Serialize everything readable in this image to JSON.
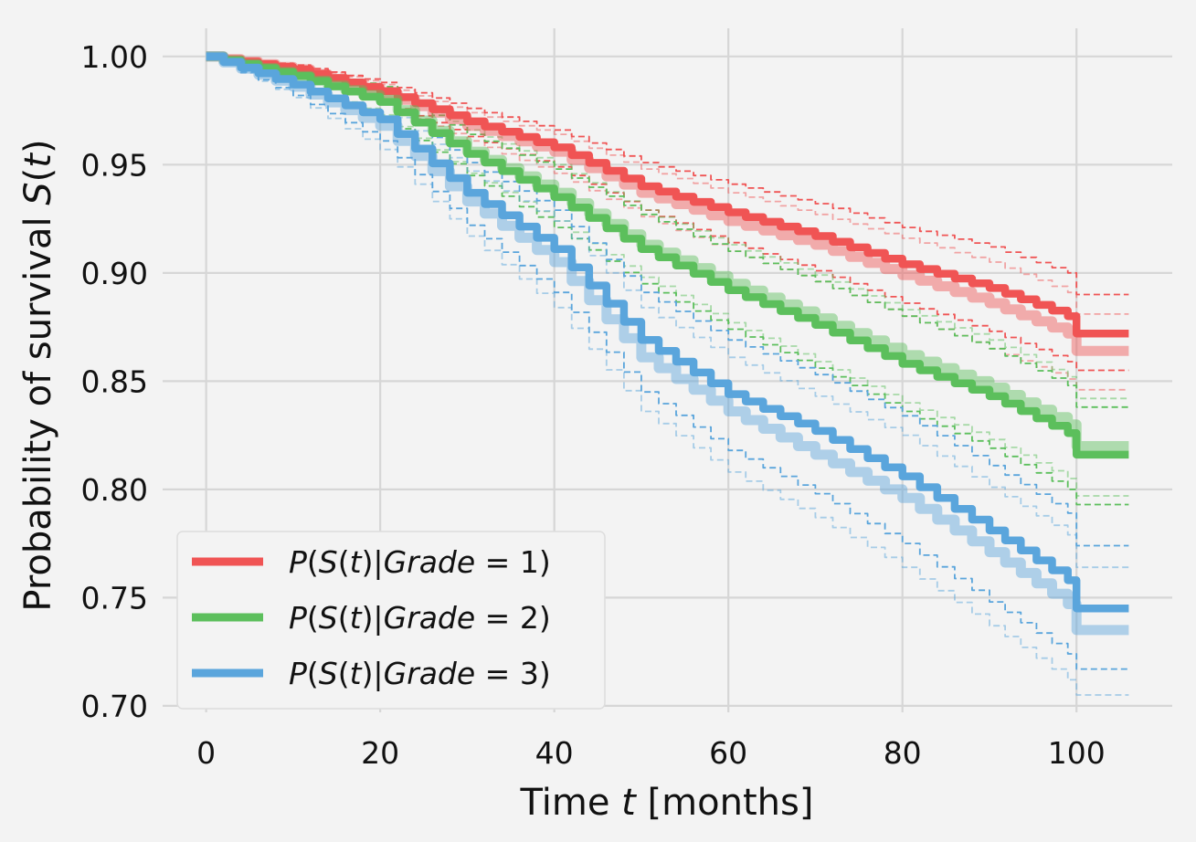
{
  "chart_data": {
    "type": "line",
    "title": "",
    "xlabel_prefix": "Time ",
    "xlabel_var": "t",
    "xlabel_suffix": " [months]",
    "ylabel_prefix": "Probability of survival ",
    "ylabel_var": "S",
    "ylabel_open": "(",
    "ylabel_var2": "t",
    "ylabel_close": ")",
    "xlim": [
      -5,
      111
    ],
    "ylim": [
      0.697,
      1.013
    ],
    "xticks": [
      0,
      20,
      40,
      60,
      80,
      100
    ],
    "xtick_labels": [
      "0",
      "20",
      "40",
      "60",
      "80",
      "100"
    ],
    "yticks": [
      0.7,
      0.75,
      0.8,
      0.85,
      0.9,
      0.95,
      1.0
    ],
    "ytick_labels": [
      "0.70",
      "0.75",
      "0.80",
      "0.85",
      "0.90",
      "0.95",
      "1.00"
    ],
    "grid": true,
    "legend_position": "bottom-left",
    "series": [
      {
        "name": "P(S(t)|Grade = 1)",
        "legend_parts": [
          "P",
          "(",
          "S",
          "(",
          "t",
          ")|",
          "Grade",
          " = 1)"
        ],
        "color": "#f05454",
        "x": [
          0,
          10,
          20,
          30,
          40,
          50,
          60,
          70,
          80,
          90,
          99,
          100,
          106
        ],
        "y": [
          1.0,
          0.994,
          0.984,
          0.97,
          0.958,
          0.94,
          0.928,
          0.917,
          0.904,
          0.893,
          0.88,
          0.872,
          0.872
        ],
        "ci_lower": [
          1.0,
          0.992,
          0.979,
          0.963,
          0.949,
          0.929,
          0.914,
          0.901,
          0.886,
          0.873,
          0.859,
          0.855,
          0.855
        ],
        "ci_upper": [
          1.0,
          0.996,
          0.988,
          0.976,
          0.966,
          0.951,
          0.941,
          0.932,
          0.921,
          0.912,
          0.9,
          0.89,
          0.89
        ],
        "secondary_y": [
          1.0,
          0.994,
          0.983,
          0.968,
          0.956,
          0.937,
          0.924,
          0.913,
          0.899,
          0.886,
          0.872,
          0.864,
          0.864
        ],
        "secondary_ci_lower": [
          1.0,
          0.992,
          0.978,
          0.961,
          0.946,
          0.926,
          0.91,
          0.896,
          0.88,
          0.865,
          0.851,
          0.846,
          0.846
        ],
        "secondary_ci_upper": [
          1.0,
          0.996,
          0.987,
          0.974,
          0.964,
          0.948,
          0.937,
          0.927,
          0.916,
          0.905,
          0.891,
          0.881,
          0.881
        ]
      },
      {
        "name": "P(S(t)|Grade = 2)",
        "legend_parts": [
          "P",
          "(",
          "S",
          "(",
          "t",
          ")|",
          "Grade",
          " = 2)"
        ],
        "color": "#5cbf5c",
        "x": [
          0,
          10,
          20,
          30,
          40,
          50,
          60,
          70,
          80,
          90,
          99,
          100,
          106
        ],
        "y": [
          1.0,
          0.991,
          0.979,
          0.955,
          0.935,
          0.911,
          0.892,
          0.876,
          0.858,
          0.843,
          0.826,
          0.816,
          0.816
        ],
        "ci_lower": [
          1.0,
          0.988,
          0.972,
          0.945,
          0.921,
          0.895,
          0.874,
          0.856,
          0.836,
          0.819,
          0.8,
          0.793,
          0.793
        ],
        "ci_upper": [
          1.0,
          0.994,
          0.986,
          0.964,
          0.948,
          0.927,
          0.91,
          0.896,
          0.88,
          0.865,
          0.848,
          0.838,
          0.838
        ],
        "secondary_y": [
          1.0,
          0.991,
          0.98,
          0.956,
          0.937,
          0.913,
          0.895,
          0.879,
          0.862,
          0.847,
          0.83,
          0.82,
          0.82
        ],
        "secondary_ci_lower": [
          1.0,
          0.988,
          0.973,
          0.946,
          0.924,
          0.898,
          0.877,
          0.859,
          0.84,
          0.823,
          0.805,
          0.797,
          0.797
        ],
        "secondary_ci_upper": [
          1.0,
          0.994,
          0.986,
          0.966,
          0.95,
          0.929,
          0.913,
          0.899,
          0.883,
          0.869,
          0.852,
          0.842,
          0.842
        ]
      },
      {
        "name": "P(S(t)|Grade = 3)",
        "legend_parts": [
          "P",
          "(",
          "S",
          "(",
          "t",
          ")|",
          "Grade",
          " = 3)"
        ],
        "color": "#5aa5dc",
        "x": [
          0,
          10,
          20,
          30,
          40,
          50,
          60,
          70,
          80,
          90,
          99,
          100,
          106
        ],
        "y": [
          1.0,
          0.987,
          0.971,
          0.937,
          0.911,
          0.869,
          0.844,
          0.827,
          0.806,
          0.781,
          0.758,
          0.745,
          0.745
        ],
        "ci_lower": [
          1.0,
          0.982,
          0.961,
          0.922,
          0.891,
          0.845,
          0.818,
          0.798,
          0.775,
          0.748,
          0.724,
          0.717,
          0.717
        ],
        "ci_upper": [
          1.0,
          0.991,
          0.98,
          0.951,
          0.929,
          0.891,
          0.869,
          0.853,
          0.834,
          0.811,
          0.789,
          0.774,
          0.774
        ],
        "secondary_y": [
          1.0,
          0.986,
          0.968,
          0.933,
          0.905,
          0.861,
          0.836,
          0.816,
          0.796,
          0.771,
          0.747,
          0.735,
          0.735
        ],
        "secondary_ci_lower": [
          1.0,
          0.981,
          0.957,
          0.917,
          0.884,
          0.836,
          0.808,
          0.787,
          0.764,
          0.737,
          0.712,
          0.705,
          0.705
        ],
        "secondary_ci_upper": [
          1.0,
          0.99,
          0.978,
          0.947,
          0.924,
          0.884,
          0.861,
          0.843,
          0.825,
          0.801,
          0.779,
          0.764,
          0.764
        ]
      }
    ]
  }
}
